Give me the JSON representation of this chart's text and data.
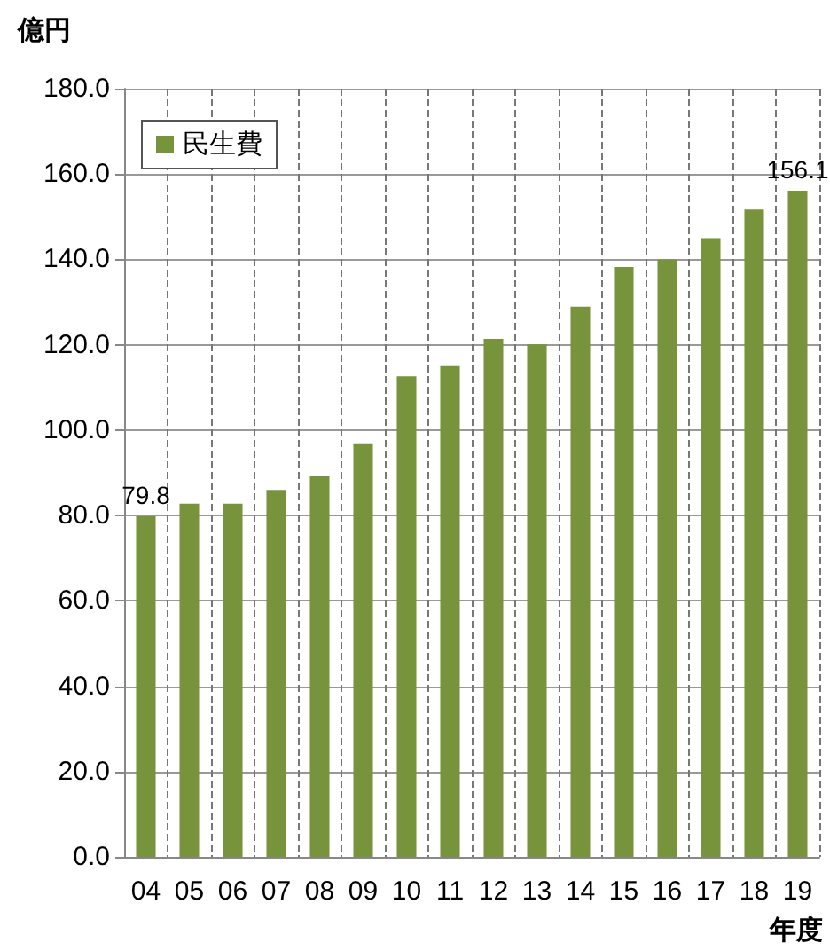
{
  "chart_data": {
    "type": "bar",
    "ylabel": "億円",
    "xlabel": "年度",
    "categories": [
      "04",
      "05",
      "06",
      "07",
      "08",
      "09",
      "10",
      "11",
      "12",
      "13",
      "14",
      "15",
      "16",
      "17",
      "18",
      "19"
    ],
    "series": [
      {
        "name": "民生費",
        "color": "#77933c",
        "values": [
          79.8,
          82.8,
          82.8,
          86.0,
          89.2,
          96.9,
          112.6,
          115.0,
          121.4,
          120.1,
          128.9,
          138.2,
          140.0,
          145.0,
          151.7,
          156.1
        ],
        "value_labels": [
          "79.8",
          null,
          null,
          null,
          null,
          null,
          null,
          null,
          null,
          null,
          null,
          null,
          null,
          null,
          null,
          "156.1"
        ]
      }
    ],
    "ylim": [
      0,
      180
    ],
    "yticks": [
      {
        "value": 0,
        "label": "0.0"
      },
      {
        "value": 20,
        "label": "20.0"
      },
      {
        "value": 40,
        "label": "40.0"
      },
      {
        "value": 60,
        "label": "60.0"
      },
      {
        "value": 80,
        "label": "80.0"
      },
      {
        "value": 100,
        "label": "100.0"
      },
      {
        "value": 120,
        "label": "120.0"
      },
      {
        "value": 140,
        "label": "140.0"
      },
      {
        "value": 160,
        "label": "160.0"
      },
      {
        "value": 180,
        "label": "180.0"
      }
    ],
    "grid": true,
    "legend": "top left"
  }
}
